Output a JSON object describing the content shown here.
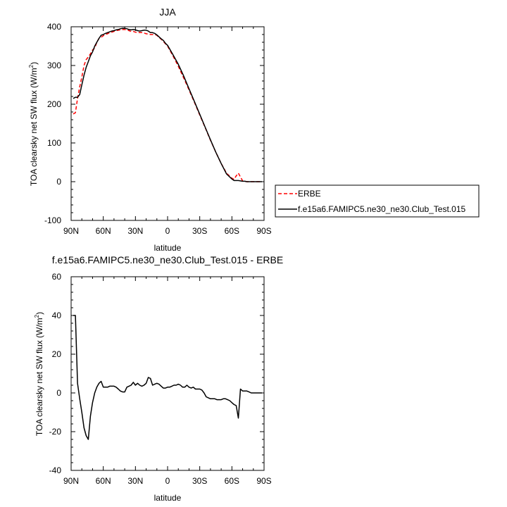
{
  "chart_data": [
    {
      "type": "line",
      "title": "JJA",
      "xlabel": "latitude",
      "ylabel_main": "TOA clearsky net SW flux (W/m",
      "ylabel_sup": "2",
      "ylabel_close": ")",
      "xlim": [
        90,
        -90
      ],
      "ylim": [
        -100,
        400
      ],
      "x_ticks": [
        90,
        60,
        30,
        0,
        -30,
        -60,
        -90
      ],
      "x_tick_labels": [
        "90N",
        "60N",
        "30N",
        "0",
        "30S",
        "60S",
        "90S"
      ],
      "y_ticks": [
        -100,
        0,
        100,
        200,
        300,
        400
      ],
      "y_tick_labels": [
        "-100",
        "0",
        "100",
        "200",
        "300",
        "400"
      ],
      "legend_placement": "right",
      "series": [
        {
          "name": "ERBE",
          "color": "#ff0000",
          "dash": "dashed",
          "x": [
            88,
            86,
            84,
            82,
            80,
            78,
            76,
            74,
            72,
            70,
            68,
            66,
            64,
            62,
            60,
            58,
            56,
            54,
            52,
            50,
            48,
            46,
            44,
            42,
            40,
            38,
            36,
            34,
            32,
            30,
            28,
            26,
            24,
            22,
            20,
            18,
            16,
            14,
            12,
            10,
            8,
            6,
            4,
            2,
            0,
            -5,
            -10,
            -15,
            -20,
            -25,
            -30,
            -35,
            -40,
            -45,
            -50,
            -55,
            -60,
            -62,
            -64,
            -66,
            -68,
            -70,
            -72,
            -74,
            -76,
            -78,
            -80,
            -82,
            -84,
            -86,
            -88
          ],
          "y": [
            175,
            178,
            215,
            245,
            270,
            300,
            315,
            322,
            330,
            340,
            345,
            360,
            370,
            373,
            377,
            380,
            382,
            385,
            386,
            388,
            390,
            391,
            392,
            393,
            393,
            392,
            390,
            388,
            388,
            386,
            385,
            385,
            385,
            384,
            382,
            381,
            380,
            380,
            380,
            378,
            372,
            368,
            362,
            356,
            350,
            325,
            298,
            268,
            237,
            205,
            172,
            140,
            107,
            76,
            47,
            22,
            9,
            6,
            15,
            22,
            12,
            2,
            1,
            0,
            0,
            0,
            0,
            0,
            0,
            0,
            0
          ]
        },
        {
          "name": "f.e15a6.FAMIPC5.ne30_ne30.Club_Test.015",
          "color": "#000000",
          "dash": "solid",
          "x": [
            88,
            86,
            84,
            82,
            80,
            78,
            76,
            74,
            72,
            70,
            68,
            66,
            64,
            62,
            60,
            58,
            56,
            54,
            52,
            50,
            48,
            46,
            44,
            42,
            40,
            38,
            36,
            34,
            32,
            30,
            28,
            26,
            24,
            22,
            20,
            18,
            16,
            14,
            12,
            10,
            8,
            6,
            4,
            2,
            0,
            -5,
            -10,
            -15,
            -20,
            -25,
            -30,
            -35,
            -40,
            -45,
            -50,
            -55,
            -60,
            -62,
            -64,
            -66,
            -68,
            -70,
            -72,
            -74,
            -76,
            -78,
            -80,
            -82,
            -84,
            -86,
            -88
          ],
          "y": [
            215,
            218,
            218,
            225,
            250,
            275,
            295,
            310,
            325,
            335,
            350,
            360,
            370,
            378,
            380,
            383,
            385,
            387,
            389,
            390,
            392,
            393,
            395,
            396,
            396,
            395,
            393,
            392,
            393,
            392,
            390,
            389,
            390,
            391,
            391,
            389,
            385,
            385,
            383,
            379,
            374,
            369,
            365,
            357,
            352,
            328,
            303,
            273,
            240,
            207,
            174,
            141,
            108,
            76,
            47,
            20,
            7,
            3,
            3,
            3,
            2,
            1,
            1,
            0,
            0,
            0,
            0,
            0,
            0,
            0,
            0
          ]
        }
      ]
    },
    {
      "type": "line",
      "title": "f.e15a6.FAMIPC5.ne30_ne30.Club_Test.015 - ERBE",
      "xlabel": "latitude",
      "ylabel_main": "TOA clearsky net SW flux (W/m",
      "ylabel_sup": "2",
      "ylabel_close": ")",
      "xlim": [
        90,
        -90
      ],
      "ylim": [
        -40,
        60
      ],
      "x_ticks": [
        90,
        60,
        30,
        0,
        -30,
        -60,
        -90
      ],
      "x_tick_labels": [
        "90N",
        "60N",
        "30N",
        "0",
        "30S",
        "60S",
        "90S"
      ],
      "y_ticks": [
        -40,
        -20,
        0,
        20,
        40,
        60
      ],
      "y_tick_labels": [
        "-40",
        "-20",
        "0",
        "20",
        "40",
        "60"
      ],
      "series": [
        {
          "color": "#000000",
          "dash": "solid",
          "x": [
            88,
            86,
            84,
            82,
            80,
            78,
            76,
            74,
            72,
            70,
            68,
            66,
            64,
            62,
            60,
            58,
            56,
            54,
            52,
            50,
            48,
            46,
            44,
            42,
            40,
            38,
            36,
            34,
            32,
            30,
            28,
            26,
            24,
            22,
            20,
            18,
            16,
            14,
            12,
            10,
            8,
            6,
            4,
            2,
            0,
            -2,
            -4,
            -6,
            -8,
            -10,
            -12,
            -14,
            -16,
            -18,
            -20,
            -22,
            -24,
            -26,
            -28,
            -30,
            -32,
            -34,
            -36,
            -38,
            -40,
            -42,
            -44,
            -46,
            -48,
            -50,
            -52,
            -54,
            -56,
            -58,
            -60,
            -62,
            -64,
            -66,
            -68,
            -70,
            -72,
            -74,
            -76,
            -78,
            -80,
            -82,
            -84,
            -86,
            -88
          ],
          "y": [
            40,
            40,
            5,
            -3,
            -10,
            -18,
            -22,
            -24,
            -12,
            -5,
            0,
            3,
            5,
            6,
            3,
            3,
            3,
            3.5,
            3.5,
            3.5,
            3,
            2,
            1,
            0.5,
            0.5,
            3,
            3.5,
            4,
            5.5,
            4,
            5,
            4,
            3.5,
            4,
            5,
            8,
            7.5,
            4,
            4.5,
            5,
            4.5,
            3.5,
            2.5,
            2.5,
            3,
            3,
            3.5,
            4,
            4,
            4.5,
            4,
            3,
            3,
            4,
            3,
            2.5,
            3,
            2,
            2,
            2,
            1.5,
            0,
            -2,
            -2.5,
            -3,
            -3,
            -3,
            -3.5,
            -3.5,
            -3.5,
            -3,
            -3,
            -3.5,
            -4,
            -5,
            -6,
            -6.5,
            -13,
            2,
            1,
            1,
            1,
            0.5,
            0,
            0,
            0,
            0,
            0,
            0
          ]
        }
      ]
    }
  ]
}
